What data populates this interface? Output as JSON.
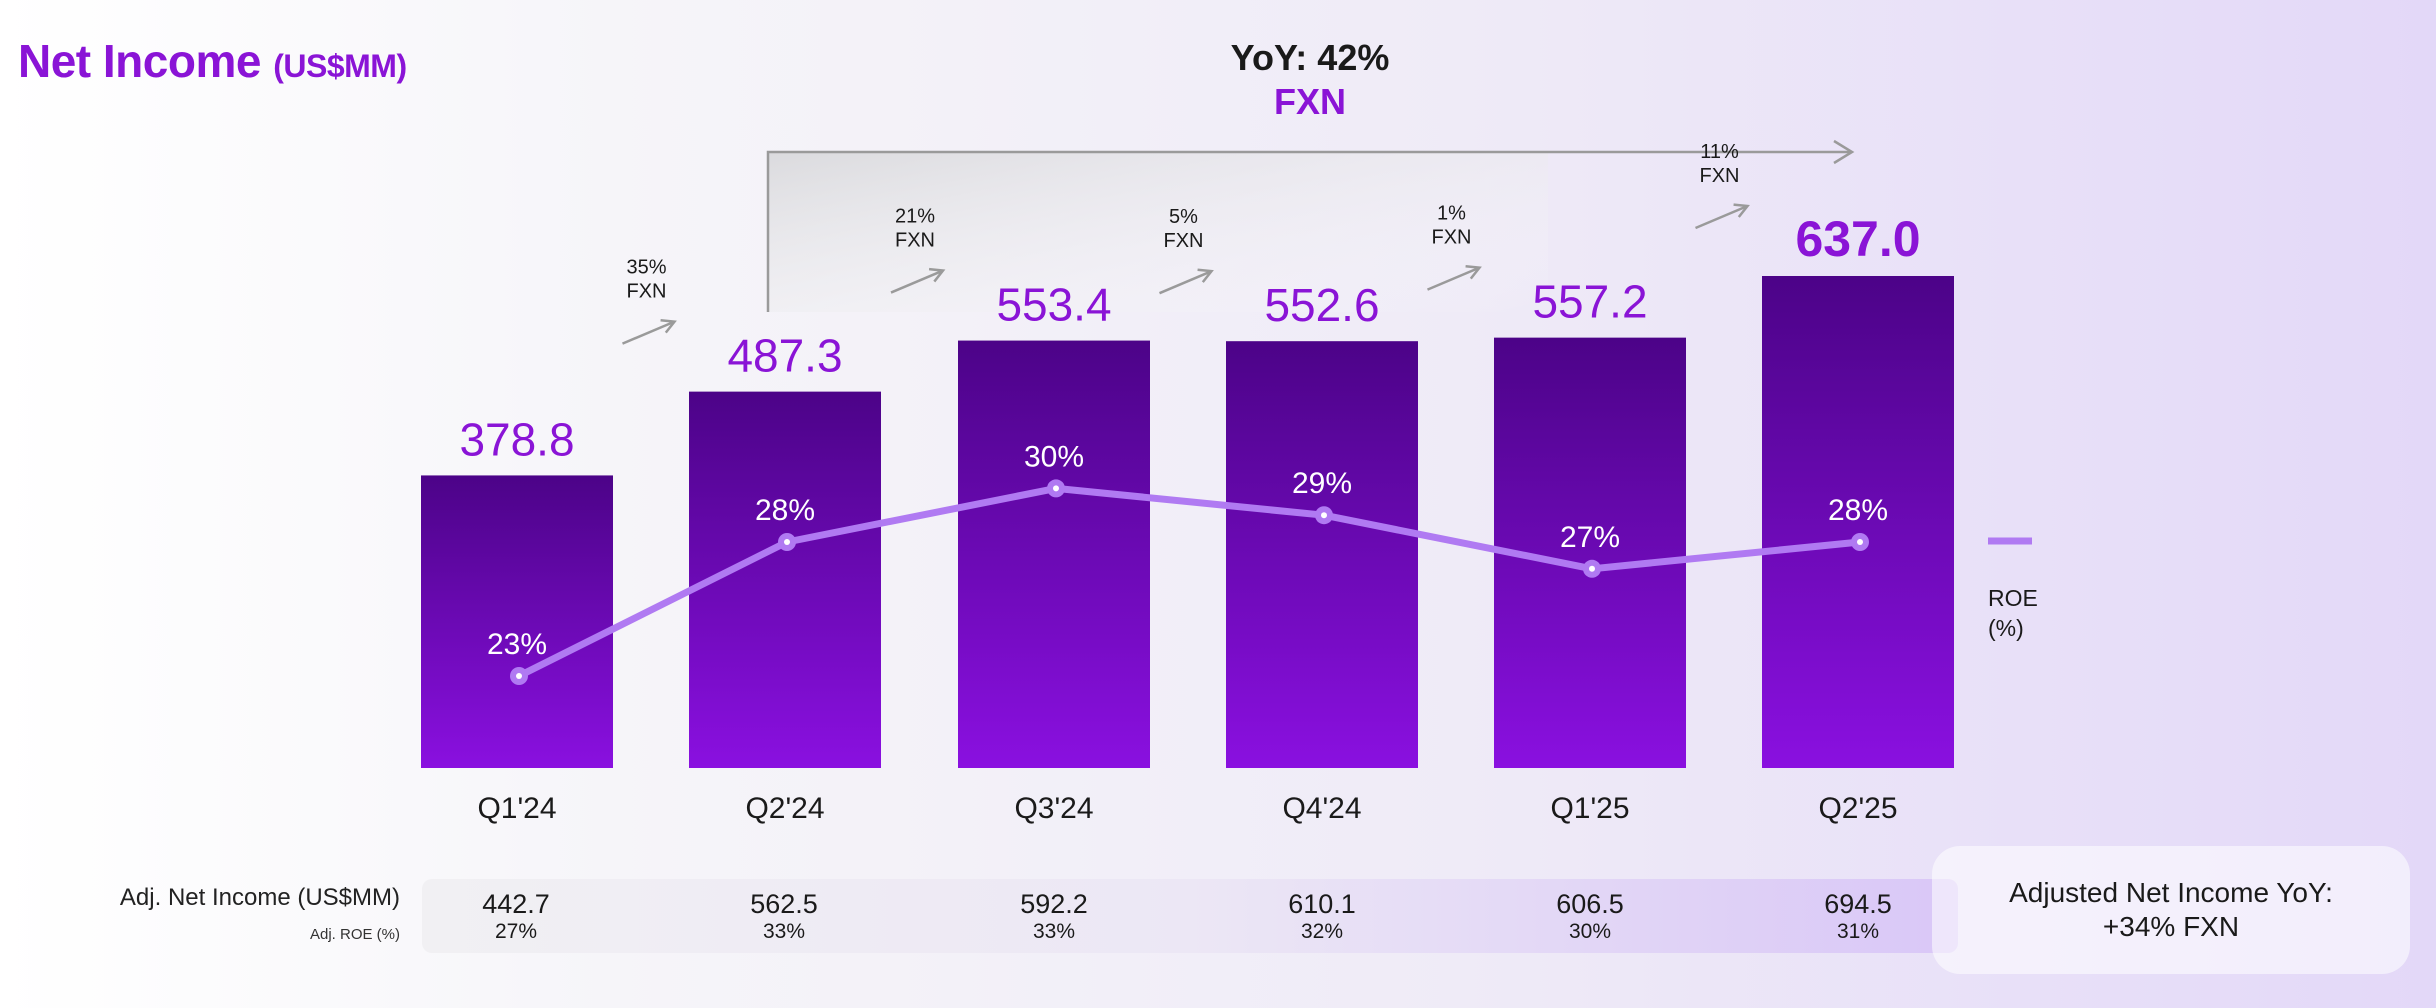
{
  "title": {
    "main": "Net Income",
    "unit": "(US$MM)"
  },
  "yoy": {
    "line1": "YoY: 42%",
    "line2": "FXN"
  },
  "chart_data": {
    "type": "bar",
    "title": "Net Income (US$MM)",
    "categories": [
      "Q1'24",
      "Q2'24",
      "Q3'24",
      "Q4'24",
      "Q1'25",
      "Q2'25"
    ],
    "values": [
      378.8,
      487.3,
      553.4,
      552.6,
      557.2,
      637.0
    ],
    "value_labels": [
      "378.8",
      "487.3",
      "553.4",
      "552.6",
      "557.2",
      "637.0"
    ],
    "ylim": [
      0,
      637.0
    ],
    "line_series": {
      "name": "ROE (%)",
      "legend_lines": [
        "ROE",
        "(%)"
      ],
      "values": [
        23,
        28,
        30,
        29,
        27,
        28
      ],
      "labels": [
        "23%",
        "28%",
        "30%",
        "29%",
        "27%",
        "28%"
      ],
      "ylim": [
        18,
        33
      ]
    },
    "growth_annotations": [
      {
        "pct": "35%",
        "label": "FXN"
      },
      {
        "pct": "21%",
        "label": "FXN"
      },
      {
        "pct": "5%",
        "label": "FXN"
      },
      {
        "pct": "1%",
        "label": "FXN"
      },
      {
        "pct": "11%",
        "label": "FXN"
      }
    ],
    "colors": {
      "bar_top": "#4c0388",
      "bar_bottom": "#8a10e0",
      "value_label": "#8a14d6",
      "line": "#b07af2",
      "arrow": "#9a9a9a"
    }
  },
  "adjusted": {
    "net_income_label": "Adj. Net Income (US$MM)",
    "roe_label": "Adj. ROE (%)",
    "net_income": [
      "442.7",
      "562.5",
      "592.2",
      "610.1",
      "606.5",
      "694.5"
    ],
    "roe": [
      "27%",
      "33%",
      "33%",
      "32%",
      "30%",
      "31%"
    ]
  },
  "callout": {
    "line1": "Adjusted Net Income YoY:",
    "line2": "+34% FXN"
  }
}
